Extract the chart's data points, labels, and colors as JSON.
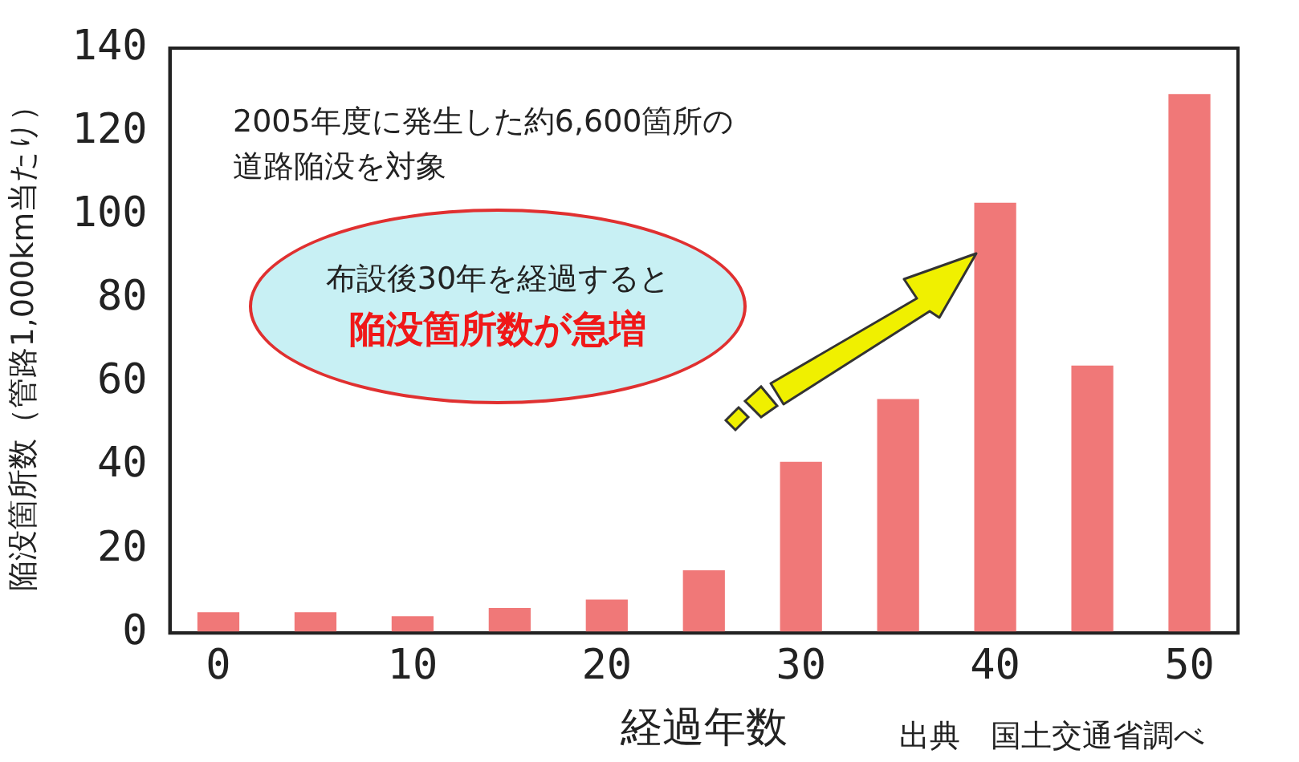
{
  "chart_data": {
    "type": "bar",
    "xlabel": "経過年数",
    "ylabel": "陥没箇所数（管路1,000km当たり）",
    "categories": [
      "0",
      null,
      "10",
      null,
      "20",
      null,
      "30",
      null,
      "40",
      null,
      "50"
    ],
    "values": [
      5,
      5,
      4,
      6,
      8,
      15,
      41,
      56,
      103,
      64,
      129
    ],
    "color": "#f07878",
    "ylim": [
      0,
      140
    ],
    "yticks": [
      0,
      20,
      40,
      60,
      80,
      100,
      120,
      140
    ],
    "grid": false,
    "legend": false,
    "annotations": [
      "2005年度に発生した約6,600箇所の道路陥没を対象",
      "布設後30年を経過すると",
      "陥没箇所数が急増",
      "出典　国土交通省調べ"
    ]
  }
}
